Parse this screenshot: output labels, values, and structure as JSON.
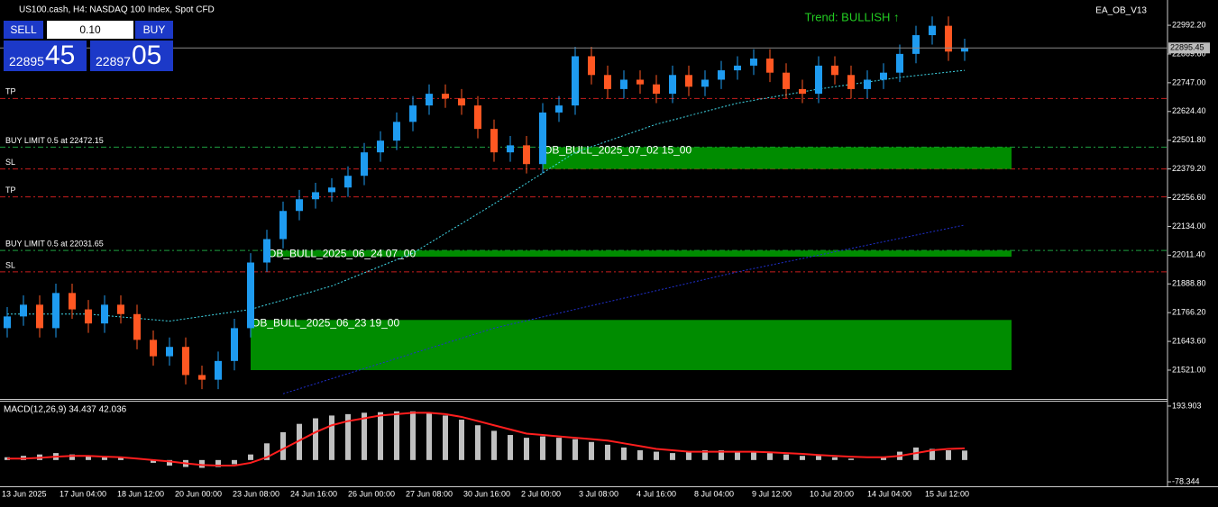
{
  "header": {
    "title": "US100.cash, H4:  NASDAQ 100 Index, Spot CFD",
    "ea": "EA_OB_V13",
    "trend": "Trend: BULLISH ↑"
  },
  "trade_panel": {
    "sell": "SELL",
    "buy": "BUY",
    "lot": "0.10",
    "bid_big": "22895",
    "bid_small": "45",
    "ask_big": "22897",
    "ask_small": "05"
  },
  "chart_data": [
    {
      "type": "candlestick",
      "open": [
        21700,
        21750,
        21800,
        21700,
        21850,
        21780,
        21720,
        21800,
        21760,
        21650,
        21580,
        21620,
        21500,
        21480,
        21560,
        21700,
        21980,
        22080,
        22200,
        22250,
        22280,
        22300,
        22350,
        22450,
        22500,
        22580,
        22650,
        22700,
        22680,
        22650,
        22550,
        22450,
        22480,
        22400,
        22620,
        22650,
        22860,
        22780,
        22720,
        22760,
        22740,
        22700,
        22780,
        22730,
        22760,
        22800,
        22820,
        22850,
        22790,
        22720,
        22700,
        22820,
        22780,
        22720,
        22760,
        22790,
        22870,
        22950,
        22990,
        22880
      ],
      "high": [
        21790,
        21840,
        21840,
        21890,
        21890,
        21820,
        21840,
        21840,
        21800,
        21690,
        21660,
        21660,
        21540,
        21600,
        21740,
        22020,
        22120,
        22240,
        22290,
        22320,
        22340,
        22390,
        22490,
        22540,
        22620,
        22690,
        22740,
        22740,
        22720,
        22690,
        22590,
        22520,
        22520,
        22660,
        22690,
        22900,
        22900,
        22820,
        22800,
        22800,
        22780,
        22820,
        22820,
        22800,
        22840,
        22860,
        22890,
        22890,
        22830,
        22760,
        22860,
        22860,
        22820,
        22800,
        22830,
        22910,
        22990,
        23030,
        23030,
        22935
      ],
      "low": [
        21660,
        21710,
        21660,
        21660,
        21740,
        21680,
        21680,
        21720,
        21610,
        21540,
        21540,
        21460,
        21440,
        21440,
        21520,
        21660,
        21940,
        22040,
        22160,
        22210,
        22240,
        22260,
        22310,
        22410,
        22460,
        22540,
        22610,
        22640,
        22610,
        22510,
        22410,
        22410,
        22360,
        22360,
        22580,
        22610,
        22740,
        22680,
        22680,
        22700,
        22660,
        22660,
        22690,
        22690,
        22720,
        22760,
        22780,
        22750,
        22680,
        22660,
        22660,
        22740,
        22680,
        22680,
        22720,
        22750,
        22830,
        22910,
        22840,
        22840
      ],
      "close": [
        21750,
        21800,
        21700,
        21850,
        21780,
        21720,
        21800,
        21760,
        21650,
        21580,
        21620,
        21500,
        21480,
        21560,
        21700,
        21980,
        22080,
        22200,
        22250,
        22280,
        22300,
        22350,
        22450,
        22500,
        22580,
        22650,
        22700,
        22680,
        22650,
        22550,
        22450,
        22480,
        22400,
        22620,
        22650,
        22860,
        22780,
        22720,
        22760,
        22740,
        22700,
        22780,
        22730,
        22760,
        22800,
        22820,
        22850,
        22790,
        22720,
        22700,
        22820,
        22780,
        22720,
        22760,
        22790,
        22870,
        22950,
        22990,
        22880,
        22895
      ],
      "up_color": "#1e9bf0",
      "down_color": "#ff5722",
      "ylim": [
        21398,
        23100
      ],
      "yticks": [
        {
          "value": 21521.0,
          "label": "21521.00"
        },
        {
          "value": 21643.6,
          "label": "21643.60"
        },
        {
          "value": 21766.2,
          "label": "21766.20"
        },
        {
          "value": 21888.8,
          "label": "21888.80"
        },
        {
          "value": 22011.4,
          "label": "22011.40"
        },
        {
          "value": 22134.0,
          "label": "22134.00"
        },
        {
          "value": 22256.6,
          "label": "22256.60"
        },
        {
          "value": 22379.2,
          "label": "22379.20"
        },
        {
          "value": 22501.8,
          "label": "22501.80"
        },
        {
          "value": 22624.4,
          "label": "22624.40"
        },
        {
          "value": 22747.0,
          "label": "22747.00"
        },
        {
          "value": 22869.6,
          "label": "22869.60"
        },
        {
          "value": 22992.2,
          "label": "22992.20"
        }
      ],
      "current_price": {
        "value": 22895.45,
        "label": "22895.45"
      },
      "ma_fast": {
        "color": "#40d8e8",
        "x": [
          0,
          5,
          10,
          15,
          20,
          25,
          30,
          35,
          40,
          45,
          50,
          55,
          59
        ],
        "values": [
          21760,
          21760,
          21730,
          21780,
          21880,
          22020,
          22230,
          22450,
          22570,
          22660,
          22720,
          22770,
          22800
        ]
      },
      "ma_slow": {
        "color": "#2030d0",
        "x": [
          17,
          30,
          45,
          59
        ],
        "values": [
          21420,
          21700,
          21940,
          22140
        ]
      },
      "levels": [
        {
          "label": "TP",
          "value": 22680,
          "color": "#c81e1e"
        },
        {
          "label": "BUY LIMIT 0.5 at 22472.15",
          "value": 22472.15,
          "color": "#1ea040"
        },
        {
          "label": "SL",
          "value": 22379,
          "color": "#c81e1e"
        },
        {
          "label": "TP",
          "value": 22260,
          "color": "#c81e1e"
        },
        {
          "label": "BUY LIMIT 0.5 at 22031.65",
          "value": 22031.65,
          "color": "#1ea040"
        },
        {
          "label": "SL",
          "value": 21940,
          "color": "#c81e1e"
        }
      ],
      "order_blocks": [
        {
          "label": "OB_BULL_2025_07_02 15_00",
          "start": 33,
          "top": 22472,
          "bottom": 22379
        },
        {
          "label": "OB_BULL_2025_06_24 07_00",
          "start": 16,
          "top": 22031,
          "bottom": 22005
        },
        {
          "label": "OB_BULL_2025_06_23 19_00",
          "start": 15,
          "top": 21735,
          "bottom": 21521
        }
      ],
      "xtick_labels": [
        "13 Jun 2025",
        "17 Jun 04:00",
        "18 Jun 12:00",
        "20 Jun 00:00",
        "23 Jun 08:00",
        "24 Jun 16:00",
        "26 Jun 00:00",
        "27 Jun 08:00",
        "30 Jun 16:00",
        "2 Jul 00:00",
        "3 Jul 08:00",
        "4 Jul 16:00",
        "8 Jul 04:00",
        "9 Jul 12:00",
        "10 Jul 20:00",
        "14 Jul 04:00",
        "15 Jul 12:00"
      ]
    },
    {
      "type": "macd",
      "title": "MACD(12,26,9) 34.437 42.036",
      "histogram": [
        10,
        15,
        20,
        25,
        20,
        15,
        10,
        8,
        0,
        -10,
        -20,
        -25,
        -28,
        -25,
        -15,
        20,
        60,
        100,
        130,
        150,
        160,
        165,
        170,
        172,
        175,
        175,
        170,
        160,
        145,
        125,
        105,
        90,
        80,
        85,
        80,
        75,
        65,
        55,
        45,
        35,
        30,
        25,
        30,
        35,
        35,
        30,
        30,
        25,
        20,
        15,
        15,
        10,
        5,
        0,
        10,
        30,
        45,
        40,
        35,
        34
      ],
      "signal": [
        5,
        5,
        8,
        12,
        15,
        15,
        12,
        10,
        5,
        0,
        -5,
        -12,
        -18,
        -20,
        -20,
        -10,
        10,
        40,
        70,
        100,
        125,
        140,
        150,
        160,
        165,
        170,
        170,
        165,
        155,
        140,
        125,
        110,
        95,
        90,
        85,
        80,
        75,
        70,
        60,
        50,
        40,
        35,
        30,
        30,
        30,
        30,
        30,
        28,
        25,
        22,
        18,
        15,
        12,
        10,
        10,
        15,
        25,
        35,
        40,
        42
      ],
      "hist_color": "#c0c0c0",
      "signal_color": "#ff1e1e",
      "ylim": [
        -94.4,
        209.9
      ],
      "yticks": [
        193.903,
        -78.344
      ]
    }
  ]
}
